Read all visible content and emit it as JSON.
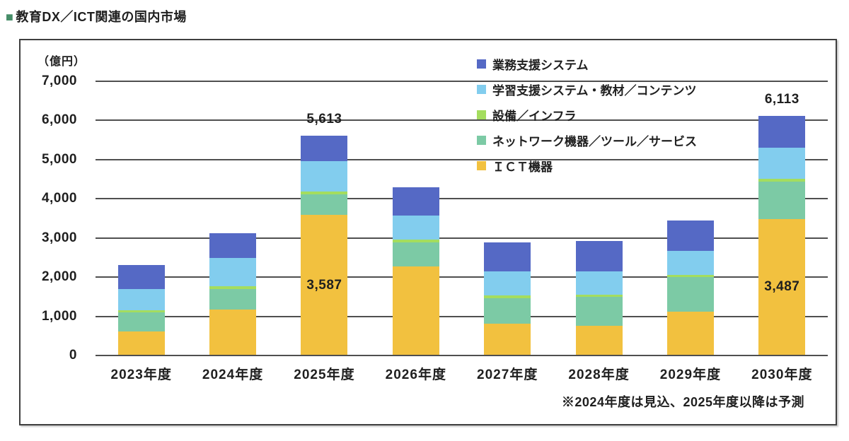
{
  "header": {
    "bullet": "■",
    "title": "教育DX／ICT関連の国内市場"
  },
  "chart_data": {
    "type": "stacked-bar",
    "unit_label": "（億円）",
    "categories": [
      "2023年度",
      "2024年度",
      "2025年度",
      "2026年度",
      "2027年度",
      "2028年度",
      "2029年度",
      "2030年度"
    ],
    "series": [
      {
        "name": "業務支援システム",
        "color": "#5569c5",
        "values": [
          620,
          640,
          656,
          710,
          730,
          780,
          780,
          816
        ]
      },
      {
        "name": "学習支援システム・教材／コンテンツ",
        "color": "#82cdee",
        "values": [
          540,
          730,
          780,
          630,
          620,
          600,
          610,
          790
        ]
      },
      {
        "name": "設備／インフラ",
        "color": "#a4dd5e",
        "values": [
          50,
          70,
          70,
          60,
          70,
          60,
          60,
          70
        ]
      },
      {
        "name": "ネットワーク機器／ツール／サービス",
        "color": "#7ccaa5",
        "values": [
          490,
          520,
          520,
          620,
          640,
          740,
          890,
          950
        ]
      },
      {
        "name": "ＩＣＴ機器",
        "color": "#f2c13f",
        "values": [
          610,
          1170,
          3587,
          2270,
          820,
          750,
          1110,
          3487
        ]
      }
    ],
    "stack_order_bottom_to_top": [
      4,
      3,
      2,
      1,
      0
    ],
    "ylim": [
      0,
      7000
    ],
    "ytick_step": 1000,
    "yticks": [
      "0",
      "1,000",
      "2,000",
      "3,000",
      "4,000",
      "5,000",
      "6,000",
      "7,000"
    ],
    "annotations": {
      "totals": [
        {
          "category_index": 2,
          "text": "5,613"
        },
        {
          "category_index": 7,
          "text": "6,113"
        }
      ],
      "segment_labels": [
        {
          "category_index": 2,
          "series_index": 4,
          "text": "3,587"
        },
        {
          "category_index": 7,
          "series_index": 4,
          "text": "3,487"
        }
      ]
    },
    "footnote": "※2024年度は見込、2025年度以降は予測",
    "grid_color": "#4f4f4f",
    "legend_position": "top-right"
  }
}
